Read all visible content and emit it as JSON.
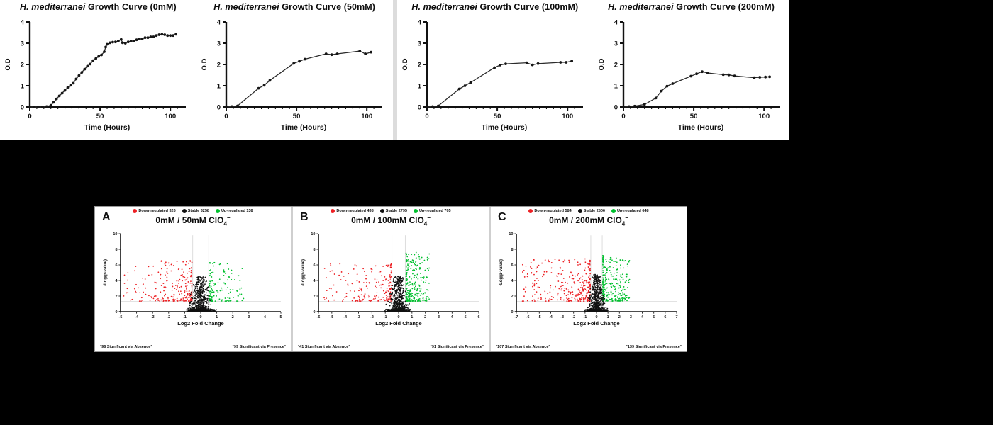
{
  "colors": {
    "background": "#000000",
    "panel_background": "#ffffff",
    "axis": "#111111",
    "curve_line": "#2b2b2b",
    "marker": "#161616",
    "threshold_line": "#d9d9d9",
    "down_regulated": "#ed2024",
    "stable": "#111111",
    "up_regulated": "#00c02e"
  },
  "chart_data": [
    {
      "id": "growth-0mM",
      "type": "line",
      "title": "H. mediterranei Growth Curve (0mM)",
      "title_italic": "H. mediterranei",
      "title_rest": " Growth Curve (0mM)",
      "xlabel": "Time (Hours)",
      "ylabel": "O.D",
      "xlim": [
        0,
        110
      ],
      "ylim": [
        0,
        4
      ],
      "xticks": [
        0,
        50,
        100
      ],
      "yticks": [
        0,
        1,
        2,
        3,
        4
      ],
      "x_minor_step": 5,
      "points": [
        [
          0,
          0
        ],
        [
          3,
          0
        ],
        [
          6,
          0
        ],
        [
          9,
          0
        ],
        [
          12,
          0.02
        ],
        [
          15,
          0.08
        ],
        [
          17,
          0.22
        ],
        [
          19,
          0.38
        ],
        [
          21,
          0.52
        ],
        [
          23,
          0.65
        ],
        [
          25,
          0.78
        ],
        [
          27,
          0.92
        ],
        [
          29,
          1.02
        ],
        [
          31,
          1.12
        ],
        [
          33,
          1.32
        ],
        [
          35,
          1.48
        ],
        [
          37,
          1.63
        ],
        [
          39,
          1.78
        ],
        [
          41,
          1.92
        ],
        [
          43,
          2.02
        ],
        [
          45,
          2.18
        ],
        [
          47,
          2.28
        ],
        [
          49,
          2.38
        ],
        [
          51,
          2.45
        ],
        [
          53,
          2.6
        ],
        [
          54,
          2.82
        ],
        [
          55,
          2.95
        ],
        [
          57,
          3.02
        ],
        [
          59,
          3.05
        ],
        [
          61,
          3.06
        ],
        [
          63,
          3.1
        ],
        [
          65,
          3.18
        ],
        [
          66,
          3.02
        ],
        [
          68,
          3.0
        ],
        [
          70,
          3.06
        ],
        [
          72,
          3.1
        ],
        [
          74,
          3.1
        ],
        [
          76,
          3.16
        ],
        [
          78,
          3.2
        ],
        [
          80,
          3.2
        ],
        [
          82,
          3.26
        ],
        [
          84,
          3.26
        ],
        [
          86,
          3.3
        ],
        [
          88,
          3.3
        ],
        [
          90,
          3.36
        ],
        [
          92,
          3.4
        ],
        [
          94,
          3.42
        ],
        [
          96,
          3.4
        ],
        [
          98,
          3.36
        ],
        [
          100,
          3.36
        ],
        [
          102,
          3.36
        ],
        [
          104,
          3.42
        ]
      ]
    },
    {
      "id": "growth-50mM",
      "type": "line",
      "title": "H. mediterranei Growth Curve (50mM)",
      "title_italic": "H. mediterranei",
      "title_rest": " Growth Curve (50mM)",
      "xlabel": "Time (Hours)",
      "ylabel": "O.D",
      "xlim": [
        0,
        110
      ],
      "ylim": [
        0,
        4
      ],
      "xticks": [
        0,
        50,
        100
      ],
      "yticks": [
        0,
        1,
        2,
        3,
        4
      ],
      "x_minor_step": 5,
      "points": [
        [
          0,
          0
        ],
        [
          4,
          0.02
        ],
        [
          8,
          0.05
        ],
        [
          23,
          0.88
        ],
        [
          27,
          1.02
        ],
        [
          31,
          1.25
        ],
        [
          48,
          2.05
        ],
        [
          52,
          2.15
        ],
        [
          56,
          2.25
        ],
        [
          71,
          2.5
        ],
        [
          75,
          2.46
        ],
        [
          79,
          2.5
        ],
        [
          95,
          2.63
        ],
        [
          99,
          2.5
        ],
        [
          103,
          2.58
        ]
      ]
    },
    {
      "id": "growth-100mM",
      "type": "line",
      "title": "H. mediterranei Growth Curve (100mM)",
      "title_italic": "H. mediterranei",
      "title_rest": " Growth Curve (100mM)",
      "xlabel": "Time (Hours)",
      "ylabel": "O.D",
      "xlim": [
        0,
        110
      ],
      "ylim": [
        0,
        4
      ],
      "xticks": [
        0,
        50,
        100
      ],
      "yticks": [
        0,
        1,
        2,
        3,
        4
      ],
      "x_minor_step": 5,
      "points": [
        [
          0,
          0
        ],
        [
          4,
          0.02
        ],
        [
          8,
          0.05
        ],
        [
          23,
          0.85
        ],
        [
          27,
          1.0
        ],
        [
          31,
          1.15
        ],
        [
          48,
          1.85
        ],
        [
          52,
          1.97
        ],
        [
          56,
          2.03
        ],
        [
          71,
          2.08
        ],
        [
          75,
          1.98
        ],
        [
          79,
          2.04
        ],
        [
          95,
          2.1
        ],
        [
          99,
          2.1
        ],
        [
          103,
          2.16
        ]
      ]
    },
    {
      "id": "growth-200mM",
      "type": "line",
      "title": "H. mediterranei Growth Curve (200mM)",
      "title_italic": "H. mediterranei",
      "title_rest": " Growth Curve (200mM)",
      "xlabel": "Time (Hours)",
      "ylabel": "O.D",
      "xlim": [
        0,
        110
      ],
      "ylim": [
        0,
        4
      ],
      "xticks": [
        0,
        50,
        100
      ],
      "yticks": [
        0,
        1,
        2,
        3,
        4
      ],
      "x_minor_step": 5,
      "points": [
        [
          0,
          0
        ],
        [
          4,
          0.02
        ],
        [
          8,
          0.04
        ],
        [
          15,
          0.12
        ],
        [
          23,
          0.42
        ],
        [
          27,
          0.75
        ],
        [
          31,
          0.98
        ],
        [
          35,
          1.1
        ],
        [
          48,
          1.45
        ],
        [
          52,
          1.56
        ],
        [
          56,
          1.66
        ],
        [
          60,
          1.6
        ],
        [
          71,
          1.52
        ],
        [
          75,
          1.51
        ],
        [
          79,
          1.46
        ],
        [
          93,
          1.38
        ],
        [
          97,
          1.4
        ],
        [
          101,
          1.41
        ],
        [
          104,
          1.42
        ]
      ]
    },
    {
      "id": "volcano-A",
      "type": "scatter",
      "panel_label": "A",
      "title": "0mM / 50mM ClO4−",
      "title_main": "0mM / 50mM ClO",
      "title_sub": "4",
      "title_sup": "−",
      "xlabel": "Log2 Fold Change",
      "ylabel": "-Log(p-value)",
      "xlim": [
        -5,
        5
      ],
      "ylim": [
        0,
        10
      ],
      "yticks": [
        0,
        2,
        4,
        6,
        8,
        10
      ],
      "thresholds": {
        "x": [
          -0.5,
          0.5
        ],
        "y": 1.3
      },
      "legend": [
        {
          "label": "Down-regulated 326",
          "color": "#ed2024"
        },
        {
          "label": "Stable 3258",
          "color": "#111111"
        },
        {
          "label": "Up-regulated 138",
          "color": "#00c02e"
        }
      ],
      "clusters": [
        {
          "name": "down",
          "color": "#ed2024",
          "count": 230,
          "dir": -1,
          "x_extent": 5.0,
          "y_max": 6.6
        },
        {
          "name": "up",
          "color": "#00c02e",
          "count": 130,
          "dir": 1,
          "x_extent": 2.7,
          "y_max": 6.6
        },
        {
          "name": "stable",
          "color": "#111111",
          "count": 1000,
          "dir": 0,
          "x_extent": 1.5,
          "y_max": 4.5
        }
      ],
      "seed": 101,
      "footnote_left": "*96 Significant via Absence*",
      "footnote_right": "*99 Significant via Presence*"
    },
    {
      "id": "volcano-B",
      "type": "scatter",
      "panel_label": "B",
      "title": "0mM / 100mM ClO4−",
      "title_main": "0mM / 100mM ClO",
      "title_sub": "4",
      "title_sup": "−",
      "xlabel": "Log2 Fold Change",
      "ylabel": "-Log(p-value)",
      "xlim": [
        -6,
        6
      ],
      "ylim": [
        0,
        10
      ],
      "yticks": [
        0,
        2,
        4,
        6,
        8,
        10
      ],
      "thresholds": {
        "x": [
          -0.5,
          0.5
        ],
        "y": 1.3
      },
      "legend": [
        {
          "label": "Down-regulated 438",
          "color": "#ed2024"
        },
        {
          "label": "Stable 2795",
          "color": "#111111"
        },
        {
          "label": "Up-regulated 705",
          "color": "#00c02e"
        }
      ],
      "clusters": [
        {
          "name": "down",
          "color": "#ed2024",
          "count": 180,
          "dir": -1,
          "x_extent": 5.6,
          "y_max": 6.2
        },
        {
          "name": "up",
          "color": "#00c02e",
          "count": 270,
          "dir": 1,
          "x_extent": 2.3,
          "y_max": 7.6
        },
        {
          "name": "stable",
          "color": "#111111",
          "count": 1000,
          "dir": 0,
          "x_extent": 1.5,
          "y_max": 4.5
        }
      ],
      "seed": 202,
      "footnote_left": "*41 Significant via Absence*",
      "footnote_right": "*91 Significant via Presence*"
    },
    {
      "id": "volcano-C",
      "type": "scatter",
      "panel_label": "C",
      "title": "0mM / 200mM ClO4−",
      "title_main": "0mM / 200mM ClO",
      "title_sub": "4",
      "title_sup": "−",
      "xlabel": "Log2 Fold Change",
      "ylabel": "-Log(p-value)",
      "xlim": [
        -7,
        7
      ],
      "ylim": [
        0,
        10
      ],
      "yticks": [
        0,
        2,
        4,
        6,
        8,
        10
      ],
      "thresholds": {
        "x": [
          -0.5,
          0.5
        ],
        "y": 1.3
      },
      "legend": [
        {
          "label": "Down-regulated 584",
          "color": "#ed2024"
        },
        {
          "label": "Stable 2506",
          "color": "#111111"
        },
        {
          "label": "Up-regulated 648",
          "color": "#00c02e"
        }
      ],
      "clusters": [
        {
          "name": "down",
          "color": "#ed2024",
          "count": 300,
          "dir": -1,
          "x_extent": 6.5,
          "y_max": 6.8
        },
        {
          "name": "up",
          "color": "#00c02e",
          "count": 280,
          "dir": 1,
          "x_extent": 2.9,
          "y_max": 7.2
        },
        {
          "name": "stable",
          "color": "#111111",
          "count": 1000,
          "dir": 0,
          "x_extent": 1.5,
          "y_max": 4.8
        }
      ],
      "seed": 303,
      "footnote_left": "*107 Significant via Absence*",
      "footnote_right": "*139 Significant via Presence*"
    }
  ]
}
